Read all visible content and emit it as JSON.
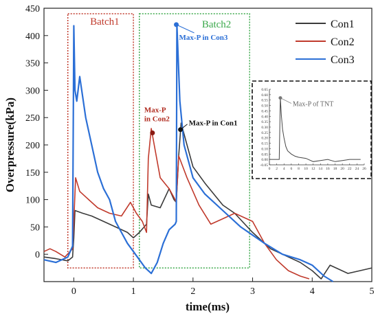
{
  "chart_data": {
    "type": "line",
    "title": "",
    "xlabel": "time(ms)",
    "ylabel": "Overpressure(kPa)",
    "xlim": [
      -0.5,
      5.0
    ],
    "ylim": [
      -50,
      450
    ],
    "x_ticks": [
      0,
      1,
      2,
      3,
      4,
      5
    ],
    "x_tick_labels": [
      "0",
      "1",
      "2",
      "3",
      "4",
      "5"
    ],
    "y_ticks": [
      0,
      50,
      100,
      150,
      200,
      250,
      300,
      350,
      400,
      450
    ],
    "y_tick_labels": [
      "0",
      "50",
      "100",
      "150",
      "200",
      "250",
      "300",
      "350",
      "400",
      "450"
    ],
    "grid": false,
    "legend_position": "top-right",
    "series": [
      {
        "name": "Con1",
        "color": "#3a3a3a",
        "x": [
          -0.5,
          -0.3,
          -0.1,
          -0.02,
          0.0,
          0.02,
          0.15,
          0.3,
          0.5,
          0.7,
          0.9,
          1.0,
          1.1,
          1.22,
          1.25,
          1.3,
          1.45,
          1.6,
          1.68,
          1.72,
          1.76,
          1.8,
          1.9,
          2.0,
          2.2,
          2.5,
          2.7,
          3.0,
          3.3,
          3.6,
          3.8,
          4.0,
          4.15,
          4.3,
          4.6,
          4.8,
          5.0
        ],
        "y": [
          -5,
          -8,
          -12,
          -5,
          30,
          80,
          75,
          70,
          60,
          50,
          40,
          30,
          40,
          55,
          110,
          90,
          85,
          120,
          100,
          95,
          180,
          240,
          200,
          160,
          130,
          90,
          75,
          40,
          10,
          -5,
          -15,
          -30,
          -45,
          -20,
          -35,
          -30,
          -25
        ]
      },
      {
        "name": "Con2",
        "color": "#c0392b",
        "x": [
          -0.5,
          -0.4,
          -0.3,
          -0.15,
          -0.02,
          0.0,
          0.03,
          0.1,
          0.25,
          0.4,
          0.6,
          0.8,
          0.95,
          1.05,
          1.15,
          1.22,
          1.25,
          1.3,
          1.35,
          1.45,
          1.6,
          1.7,
          1.72,
          1.76,
          1.9,
          2.1,
          2.3,
          2.5,
          2.7,
          3.0,
          3.2,
          3.4,
          3.6,
          3.8,
          3.95
        ],
        "y": [
          5,
          10,
          5,
          -5,
          10,
          60,
          140,
          115,
          100,
          85,
          75,
          70,
          95,
          75,
          60,
          40,
          175,
          230,
          200,
          140,
          120,
          100,
          95,
          180,
          140,
          90,
          55,
          65,
          75,
          60,
          20,
          -10,
          -30,
          -40,
          -45
        ]
      },
      {
        "name": "Con3",
        "color": "#2b6fd6",
        "x": [
          -0.5,
          -0.3,
          -0.1,
          -0.02,
          0.0,
          0.02,
          0.05,
          0.1,
          0.2,
          0.3,
          0.4,
          0.5,
          0.6,
          0.7,
          0.8,
          0.9,
          1.0,
          1.1,
          1.2,
          1.3,
          1.4,
          1.5,
          1.6,
          1.7,
          1.72,
          1.73,
          1.78,
          1.85,
          2.0,
          2.2,
          2.5,
          2.8,
          3.0,
          3.2,
          3.5,
          3.8,
          4.0,
          4.2,
          4.35
        ],
        "y": [
          -10,
          -15,
          -5,
          15,
          418,
          300,
          280,
          325,
          250,
          200,
          150,
          120,
          100,
          60,
          40,
          20,
          5,
          -10,
          -25,
          -35,
          -15,
          20,
          45,
          55,
          60,
          420,
          280,
          200,
          140,
          110,
          80,
          50,
          35,
          20,
          0,
          -10,
          -20,
          -40,
          -50
        ]
      }
    ],
    "annotations": {
      "batch1_label": "Batch1",
      "batch1_range": [
        -0.1,
        1.0
      ],
      "batch1_color": "#c0392b",
      "batch2_label": "Batch2",
      "batch2_range": [
        1.1,
        2.95
      ],
      "batch2_color": "#3aa84a",
      "maxp_con1_label": "Max-P in Con1",
      "maxp_con1_point": [
        1.79,
        228
      ],
      "maxp_con2_label_line1": "Max-P",
      "maxp_con2_label_line2": "in Con2",
      "maxp_con2_point": [
        1.32,
        222
      ],
      "maxp_con3_label": "Max-P in Con3",
      "maxp_con3_point": [
        1.72,
        420
      ]
    },
    "inset": {
      "x_ticks": [
        "0",
        "2",
        "4",
        "6",
        "8",
        "10",
        "12",
        "14",
        "16",
        "18",
        "20",
        "22",
        "24",
        "26"
      ],
      "y_ticks": [
        "-0.05",
        "0.00",
        "0.05",
        "0.10",
        "0.15",
        "0.20",
        "0.25",
        "0.30",
        "0.35",
        "0.40",
        "0.45",
        "0.50",
        "0.55",
        "0.60",
        "0.65"
      ],
      "xlim": [
        0,
        26
      ],
      "ylim": [
        -0.05,
        0.65
      ],
      "annotation": "Max-P of TNT",
      "peak": [
        3.0,
        0.57
      ],
      "series": {
        "x": [
          0,
          1,
          2,
          2.7,
          3.0,
          3.3,
          3.6,
          4.0,
          4.5,
          5,
          6,
          7,
          8,
          10,
          12,
          14,
          16,
          18,
          20,
          22,
          24,
          25
        ],
        "y": [
          0.0,
          0.0,
          0.0,
          0.0,
          0.57,
          0.4,
          0.28,
          0.2,
          0.12,
          0.08,
          0.05,
          0.03,
          0.02,
          0.01,
          -0.02,
          -0.01,
          0.0,
          -0.02,
          -0.01,
          0.0,
          0.0,
          0.0
        ]
      }
    }
  }
}
